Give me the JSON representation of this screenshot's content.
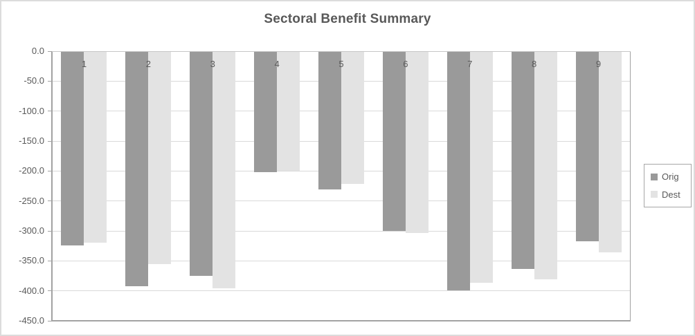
{
  "chart_data": {
    "type": "bar",
    "title": "Sectoral Benefit Summary",
    "categories": [
      "1",
      "2",
      "3",
      "4",
      "5",
      "6",
      "7",
      "8",
      "9"
    ],
    "series": [
      {
        "name": "Orig",
        "color": "#9a9a9a",
        "values": [
          -324,
          -392,
          -375,
          -202,
          -231,
          -300,
          -399,
          -364,
          -317
        ]
      },
      {
        "name": "Dest",
        "color": "#e3e3e3",
        "values": [
          -320,
          -355,
          -396,
          -200,
          -221,
          -303,
          -387,
          -381,
          -336
        ]
      }
    ],
    "ylim": [
      -450,
      0
    ],
    "ytick_step": 50,
    "ytick_labels": [
      "0.0",
      "-50.0",
      "-100.0",
      "-150.0",
      "-200.0",
      "-250.0",
      "-300.0",
      "-350.0",
      "-400.0",
      "-450.0"
    ],
    "grid": true,
    "legend_position": "right",
    "orientation": "vertical-negative"
  },
  "colors": {
    "title_text": "#595959",
    "axis_text": "#595959",
    "gridline": "#d9d9d9",
    "axis_line": "#a2a2a2",
    "zero_line": "#c6c6c6",
    "legend_border": "#a6a6a6",
    "frame_border": "#dcdcdc",
    "background": "#ffffff"
  }
}
